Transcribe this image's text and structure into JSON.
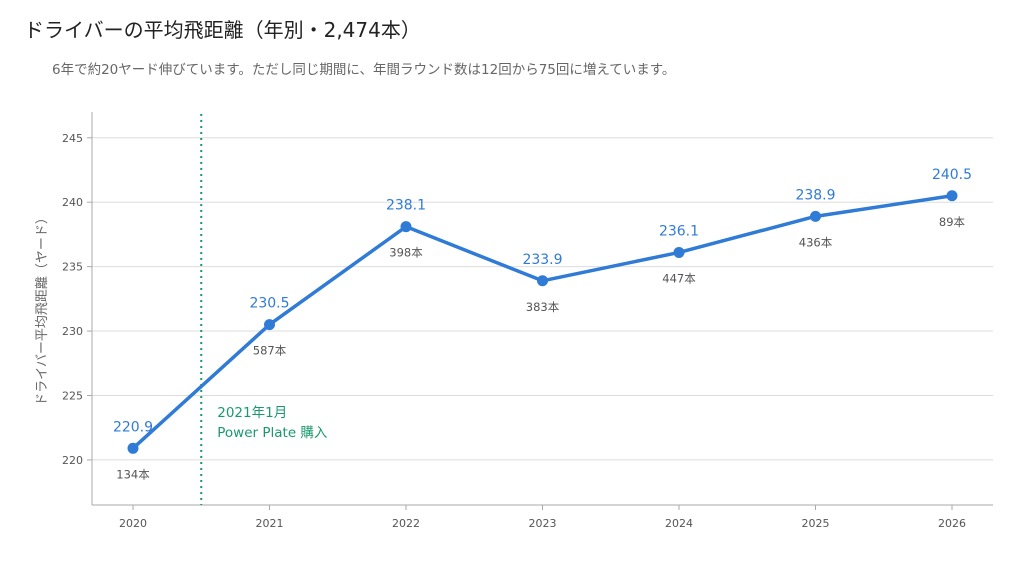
{
  "title": "ドライバーの平均飛距離（年別・2,474本）",
  "subtitle": "6年で約20ヤード伸びています。ただし同じ期間に、年間ラウンド数は12回から75回に増えています。",
  "colors": {
    "line": "#2f7bd6",
    "annotation": "#1a9a6c",
    "grid": "#dddddd",
    "axis": "#aaaaaa",
    "count_label": "#555555"
  },
  "chart_data": {
    "type": "line",
    "x": [
      "2020",
      "2021",
      "2022",
      "2023",
      "2024",
      "2025",
      "2026"
    ],
    "series": [
      {
        "values": [
          220.9,
          230.5,
          238.1,
          233.9,
          236.1,
          238.9,
          240.5
        ]
      }
    ],
    "point_labels": [
      "220.9",
      "230.5",
      "238.1",
      "233.9",
      "236.1",
      "238.9",
      "240.5"
    ],
    "counts": [
      "134本",
      "587本",
      "398本",
      "383本",
      "447本",
      "436本",
      "89本"
    ],
    "ylabel": "ドライバー平均飛距離（ヤード）",
    "xlabel": "",
    "ylim": [
      216.5,
      247
    ],
    "yticks": [
      220,
      225,
      230,
      235,
      240,
      245
    ],
    "grid": true,
    "annotation": {
      "x_value": 2020.5,
      "style": "dotted-vertical",
      "lines": [
        "2021年1月",
        "Power Plate 購入"
      ]
    }
  }
}
